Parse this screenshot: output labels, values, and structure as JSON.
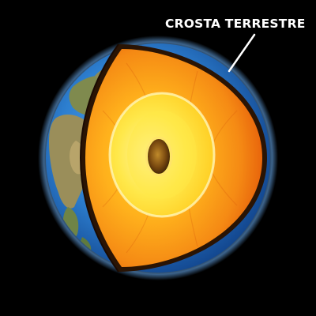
{
  "diagram": {
    "labels": {
      "crust": "CROSTA TERRESTRE"
    },
    "layers": [
      "crust",
      "mantle",
      "outer-core",
      "inner-core"
    ],
    "colors": {
      "background": "#000000",
      "ocean": "#2d7fd0",
      "land": "#8a8f55",
      "mantle": "#f07812",
      "outer_core": "#ffe02a",
      "inner_core": "#7a4a10",
      "label": "#ffffff"
    }
  }
}
